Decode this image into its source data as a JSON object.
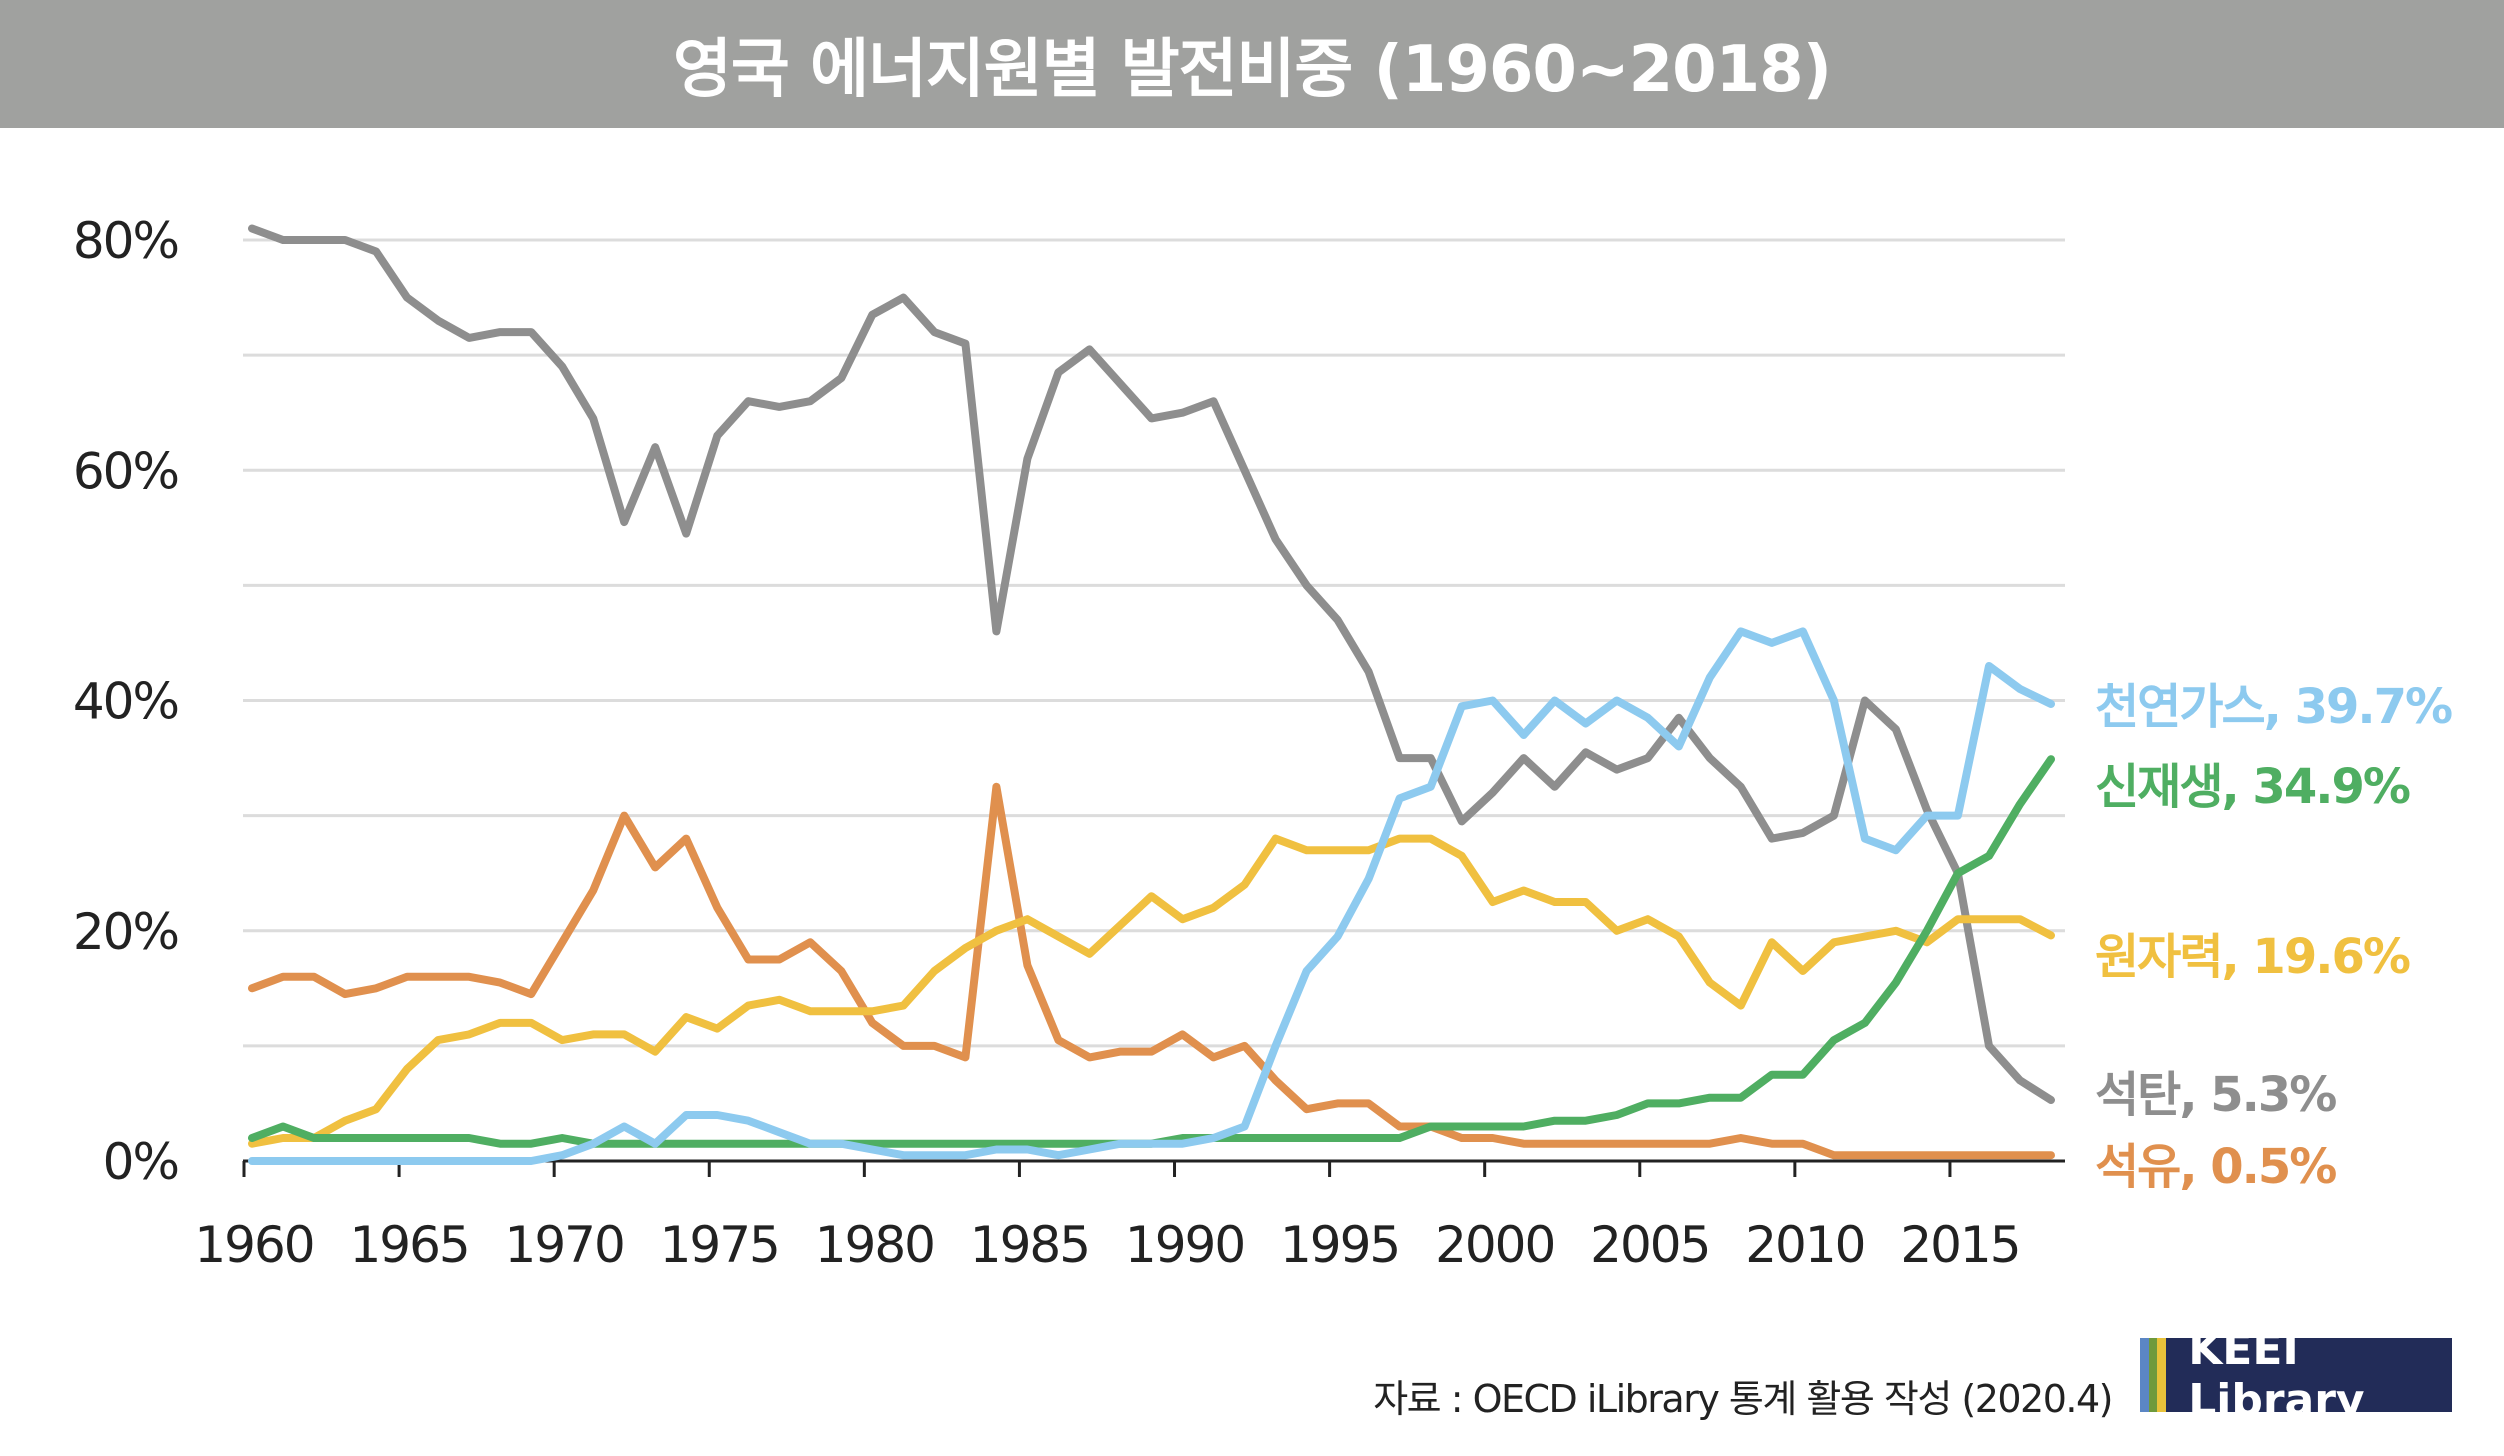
{
  "chart_data": {
    "type": "line",
    "title": "영국 에너지원별 발전비중 (1960~2018)",
    "xlabel": "",
    "ylabel": "",
    "ylim": [
      0,
      80
    ],
    "xlim": [
      1960,
      2018
    ],
    "grid": true,
    "y_ticks": [
      {
        "v": 0,
        "label": "0%"
      },
      {
        "v": 20,
        "label": "20%"
      },
      {
        "v": 40,
        "label": "40%"
      },
      {
        "v": 60,
        "label": "60%"
      },
      {
        "v": 80,
        "label": "80%"
      }
    ],
    "x_ticks": [
      "1960",
      "1965",
      "1970",
      "1975",
      "1980",
      "1985",
      "1990",
      "1995",
      "2000",
      "2005",
      "2010",
      "2015"
    ],
    "x_start": 1960,
    "series": [
      {
        "name": "석탄",
        "end_label": "석탄, 5.3%",
        "color": "#8e8e8e",
        "values": [
          81,
          80,
          80,
          80,
          79,
          75,
          73,
          71.5,
          72,
          72,
          69,
          64.5,
          55.5,
          62,
          54.5,
          63,
          66,
          65.5,
          66,
          68,
          73.5,
          75,
          72,
          71,
          46,
          61,
          68.5,
          70.5,
          67.5,
          64.5,
          65,
          66,
          60,
          54,
          50,
          47,
          42.5,
          35,
          35,
          29.5,
          32,
          35,
          32.5,
          35.5,
          34,
          35,
          38.5,
          35,
          32.5,
          28,
          28.5,
          30,
          40,
          37.5,
          30.5,
          25,
          10,
          7,
          5.3
        ]
      },
      {
        "name": "석유",
        "end_label": "석유, 0.5%",
        "color": "#e0904e",
        "values": [
          15,
          16,
          16,
          14.5,
          15,
          16,
          16,
          16,
          15.5,
          14.5,
          19,
          23.5,
          30,
          25.5,
          28,
          22,
          17.5,
          17.5,
          19,
          16.5,
          12,
          10,
          10,
          9,
          32.5,
          17,
          10.5,
          9,
          9.5,
          9.5,
          11,
          9,
          10,
          7,
          4.5,
          5,
          5,
          3,
          3,
          2,
          2,
          1.5,
          1.5,
          1.5,
          1.5,
          1.5,
          1.5,
          1.5,
          2,
          1.5,
          1.5,
          0.5,
          0.5,
          0.5,
          0.5,
          0.5,
          0.5,
          0.5,
          0.5
        ]
      },
      {
        "name": "원자력",
        "end_label": "원자력, 19.6%",
        "color": "#f0c040",
        "values": [
          1.5,
          2,
          2,
          3.5,
          4.5,
          8,
          10.5,
          11,
          12,
          12,
          10.5,
          11,
          11,
          9.5,
          12.5,
          11.5,
          13.5,
          14,
          13,
          13,
          13,
          13.5,
          16.5,
          18.5,
          20,
          21,
          19.5,
          18,
          20.5,
          23,
          21,
          22,
          24,
          28,
          27,
          27,
          27,
          28,
          28,
          26.5,
          22.5,
          23.5,
          22.5,
          22.5,
          20,
          21,
          19.5,
          15.5,
          13.5,
          19,
          16.5,
          19,
          19.5,
          20,
          19,
          21,
          21,
          21,
          19.6
        ]
      },
      {
        "name": "신재생",
        "end_label": "신재생, 34.9%",
        "color": "#4fae62",
        "values": [
          2,
          3,
          2,
          2,
          2,
          2,
          2,
          2,
          1.5,
          1.5,
          2,
          1.5,
          1.5,
          1.5,
          1.5,
          1.5,
          1.5,
          1.5,
          1.5,
          1.5,
          1.5,
          1.5,
          1.5,
          1.5,
          1.5,
          1.5,
          1.5,
          1.5,
          1.5,
          1.5,
          2,
          2,
          2,
          2,
          2,
          2,
          2,
          2,
          3,
          3,
          3,
          3,
          3.5,
          3.5,
          4,
          5,
          5,
          5.5,
          5.5,
          7.5,
          7.5,
          10.5,
          12,
          15.5,
          20,
          25,
          26.5,
          31,
          34.9
        ]
      },
      {
        "name": "천연가스",
        "end_label": "천연가스, 39.7%",
        "color": "#8dcaef",
        "values": [
          0,
          0,
          0,
          0,
          0,
          0,
          0,
          0,
          0,
          0,
          0.5,
          1.5,
          3,
          1.5,
          4,
          4,
          3.5,
          2.5,
          1.5,
          1.5,
          1,
          0.5,
          0.5,
          0.5,
          1,
          1,
          0.5,
          1,
          1.5,
          1.5,
          1.5,
          2,
          3,
          10,
          16.5,
          19.5,
          24.5,
          31.5,
          32.5,
          39.5,
          40,
          37,
          40,
          38,
          40,
          38.5,
          36,
          42,
          46,
          45,
          46,
          40,
          28,
          27,
          30,
          30,
          43,
          41,
          39.7
        ]
      }
    ]
  },
  "footer": {
    "source": "자료 : OECD iLibrary 통계 활용 작성 (2020.4)",
    "logo": "KEEI Library",
    "logo_stripes": [
      "#5b86c4",
      "#6e9a3c",
      "#e8c23a"
    ]
  }
}
